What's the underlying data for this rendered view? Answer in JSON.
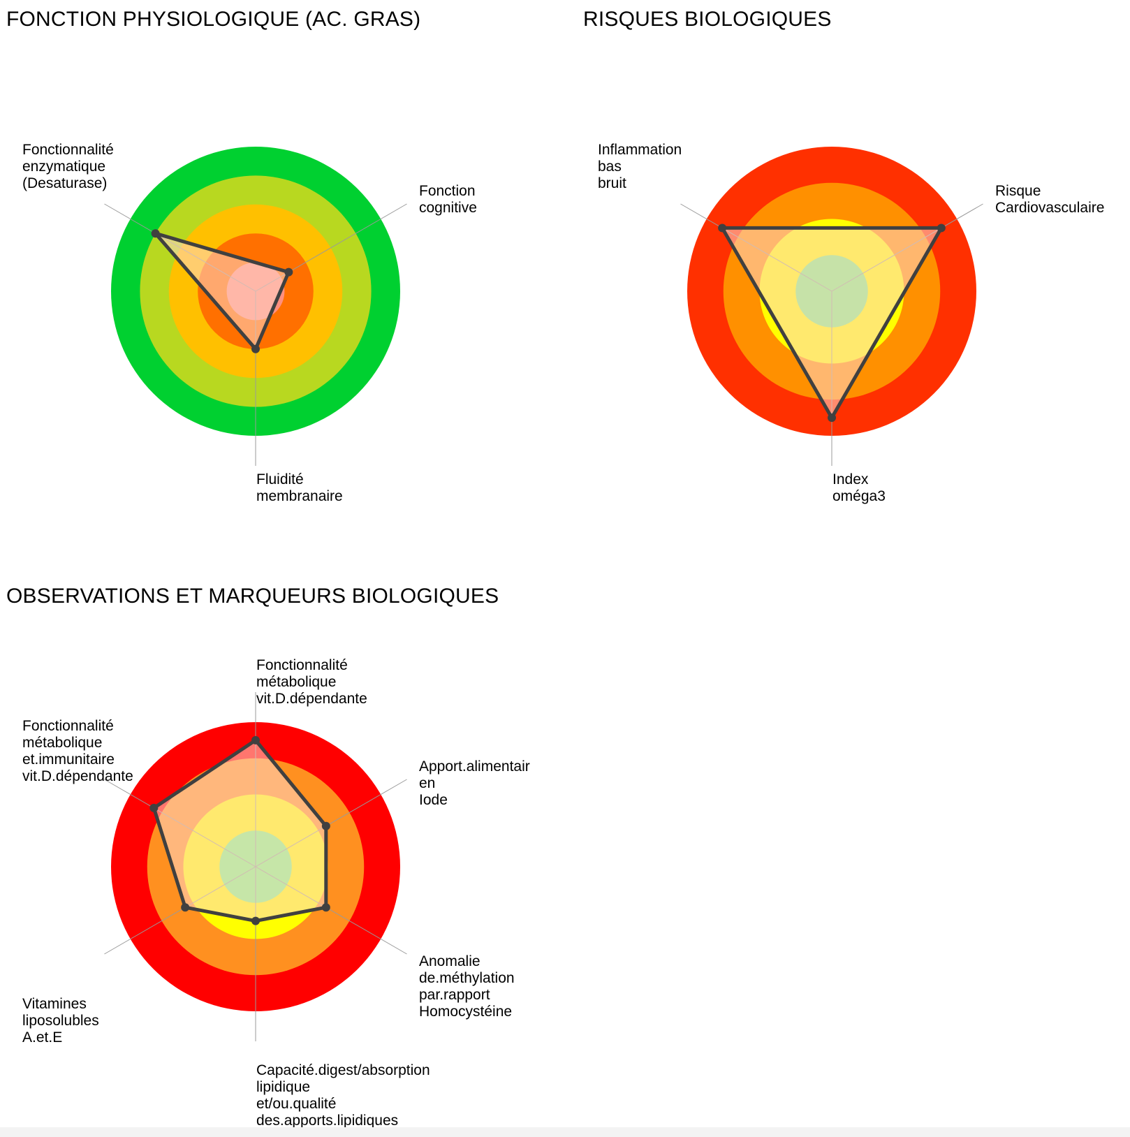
{
  "chart_data": [
    {
      "type": "radar",
      "title": "FONCTION PHYSIOLOGIQUE (AC. GRAS)",
      "axes": [
        "Fonction\ncognitive",
        "Fluidité\nmembranaire",
        "Fonctionnalité\nenzymatique\n(Desaturase)"
      ],
      "values": [
        0.33,
        0.5,
        1.0
      ],
      "bands": [
        "#ff9080",
        "#ff7000",
        "#ffc000",
        "#b8d820",
        "#00d030"
      ],
      "band_levels": 5,
      "range": [
        0,
        1.25
      ]
    },
    {
      "type": "radar",
      "title": "RISQUES BIOLOGIQUES",
      "axes": [
        "Risque\nCardiovasculaire",
        "Index\noméga3",
        "Inflammation\nbas\nbruit"
      ],
      "values": [
        1.75,
        1.75,
        1.75
      ],
      "bands": [
        "#80f080",
        "#ffff00",
        "#ff9000",
        "#ff3000"
      ],
      "band_levels": 4,
      "range": [
        0,
        2.0
      ]
    },
    {
      "type": "radar",
      "title": "OBSERVATIONS ET MARQUEURS BIOLOGIQUES",
      "axes": [
        "Fonctionnalité\nmétabolique\nvit.D.dépendante",
        "Apport.alimentair\nen\nIode",
        "Anomalie\nde.méthylation\npar.rapport\nHomocystéine",
        "Capacité.digest/absorption\nlipidique\net/ou.qualité\ndes.apports.lipidiques",
        "Vitamines\nliposolubles\nA.et.E",
        "Fonctionnalité\nmétabolique\net.immunitaire\nvit.D.dépendante"
      ],
      "values": [
        3.5,
        2.25,
        2.25,
        1.5,
        2.25,
        3.25
      ],
      "bands": [
        "#80f880",
        "#ffff00",
        "#ff9020",
        "#ff0000"
      ],
      "band_levels": 4,
      "range": [
        0,
        4.0
      ]
    }
  ]
}
